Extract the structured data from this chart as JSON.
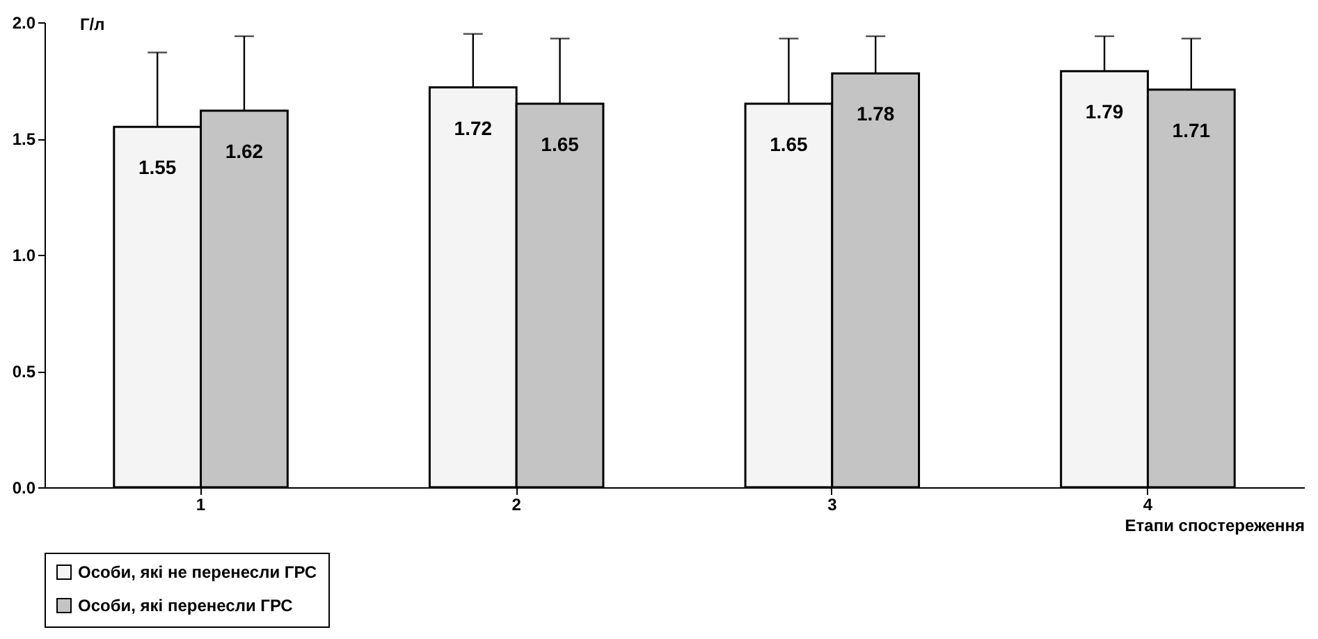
{
  "chart_data": {
    "type": "bar",
    "xlabel": "Етапи спостереження",
    "ylabel": "Г/л",
    "categories": [
      "1",
      "2",
      "3",
      "4"
    ],
    "series": [
      {
        "name": "Особи, які не перенесли ГРС",
        "color": "#f4f4f4",
        "values": [
          1.55,
          1.72,
          1.65,
          1.79
        ],
        "errors": [
          [
            1.55,
            1.87
          ],
          [
            1.72,
            1.95
          ],
          [
            1.65,
            1.93
          ],
          [
            1.79,
            1.94
          ]
        ]
      },
      {
        "name": "Особи, які перенесли ГРС",
        "color": "#c4c4c4",
        "values": [
          1.62,
          1.65,
          1.78,
          1.71
        ],
        "errors": [
          [
            1.62,
            1.94
          ],
          [
            1.65,
            1.93
          ],
          [
            1.78,
            1.94
          ],
          [
            1.71,
            1.93
          ]
        ]
      }
    ],
    "ylim": [
      0,
      2
    ],
    "yticks": [
      {
        "value": 0,
        "label": "0.0"
      },
      {
        "value": 0.5,
        "label": "0.5"
      },
      {
        "value": 1,
        "label": "1.0"
      },
      {
        "value": 1.5,
        "label": "1.5"
      },
      {
        "value": 2,
        "label": "2.0"
      }
    ],
    "data_labels": true,
    "legend": "bottom",
    "grid": false
  }
}
